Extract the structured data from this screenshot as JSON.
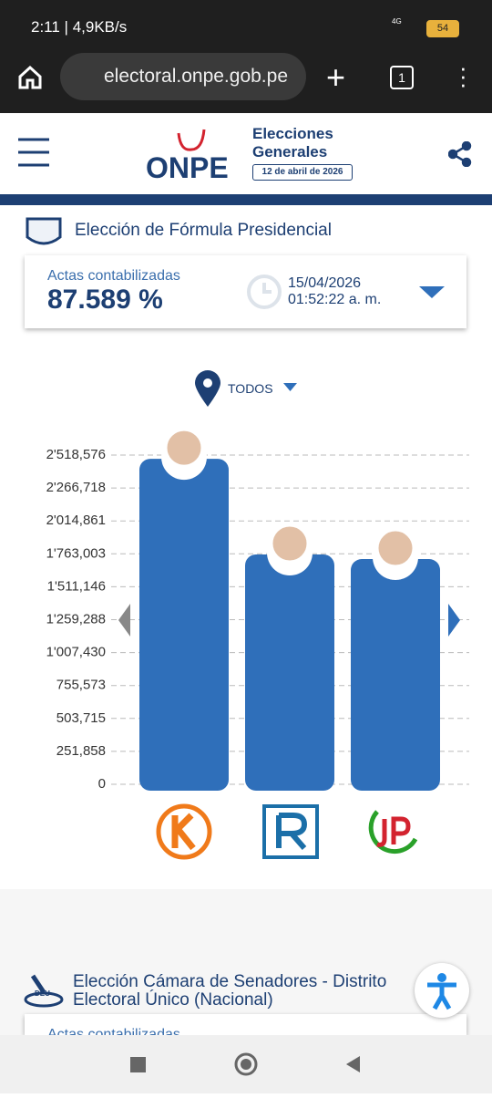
{
  "status_bar": {
    "time": "2:11 | 4,9KB/s",
    "network": "4G",
    "battery": "54"
  },
  "browser": {
    "url": "electoral.onpe.gob.pe",
    "tabs": "1"
  },
  "header": {
    "brand": "ONPE",
    "title_line1": "Elecciones",
    "title_line2": "Generales",
    "date": "12 de abril de 2026"
  },
  "section1": {
    "title": "Elección de Fórmula Presidencial",
    "label": "Actas contabilizadas",
    "value": "87.589 %",
    "date": "15/04/2026",
    "time": "01:52:22 a. m.",
    "filter": "TODOS"
  },
  "chart_data": {
    "type": "bar",
    "categories": [
      null,
      null,
      null
    ],
    "series": [
      {
        "color": "#2f6fba",
        "values": [
          2490000,
          1758000,
          1723000
        ]
      }
    ],
    "ylim": [
      0,
      2518576
    ],
    "yticks": [
      {
        "value": 0,
        "label": "0"
      },
      {
        "value": 251858,
        "label": "251,858"
      },
      {
        "value": 503715,
        "label": "503,715"
      },
      {
        "value": 755573,
        "label": "755,573"
      },
      {
        "value": 1007430,
        "label": "1'007,430"
      },
      {
        "value": 1259288,
        "label": "1'259,288"
      },
      {
        "value": 1511146,
        "label": "1'511,146"
      },
      {
        "value": 1763003,
        "label": "1'763,003"
      },
      {
        "value": 2014861,
        "label": "2'014,861"
      },
      {
        "value": 2266718,
        "label": "2'266,718"
      },
      {
        "value": 2518576,
        "label": "2'518,576"
      }
    ],
    "grid": true
  },
  "section2": {
    "badge": "DEU",
    "title_line1": "Elección Cámara de Senadores - Distrito",
    "title_line2": "Electoral Único (Nacional)",
    "label": "Actas contabilizadas"
  }
}
